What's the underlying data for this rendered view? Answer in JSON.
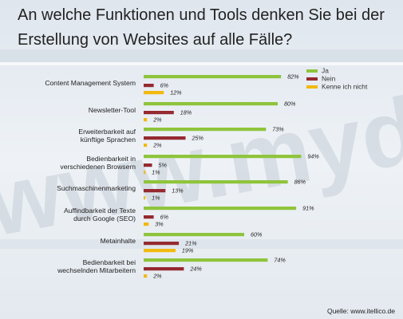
{
  "title": "An welche Funktionen und Tools denken Sie bei der Erstellung von Websites auf alle Fälle?",
  "watermark": "www.mydomain.com",
  "source": "Quelle: www.itellico.de",
  "colors": {
    "Ja": "#8ec43c",
    "Nein": "#952a30",
    "Kenne ich nicht": "#f2b90f"
  },
  "chart_data": {
    "type": "bar",
    "orientation": "horizontal",
    "unit": "%",
    "legend_position": "top-right",
    "grid": false,
    "xlim": [
      0,
      100
    ],
    "categories": [
      [
        "Content Management System"
      ],
      [
        "Newsletter-Tool"
      ],
      [
        "Erweiterbarkeit auf",
        "künftige Sprachen"
      ],
      [
        "Bedienbarkeit in",
        "verschiedenen Browsern"
      ],
      [
        "Suchmaschinenmarketing"
      ],
      [
        "Auffindbarkeit der Texte",
        "durch Google (SEO)"
      ],
      [
        "Metainhalte"
      ],
      [
        "Bedienbarkeit bei",
        "wechselnden Mitarbeitern"
      ]
    ],
    "series": [
      {
        "name": "Ja",
        "values": [
          82,
          80,
          73,
          94,
          86,
          91,
          60,
          74
        ]
      },
      {
        "name": "Nein",
        "values": [
          6,
          18,
          25,
          5,
          13,
          6,
          21,
          24
        ]
      },
      {
        "name": "Kenne ich nicht",
        "values": [
          12,
          2,
          2,
          1,
          1,
          3,
          19,
          2
        ]
      }
    ]
  }
}
